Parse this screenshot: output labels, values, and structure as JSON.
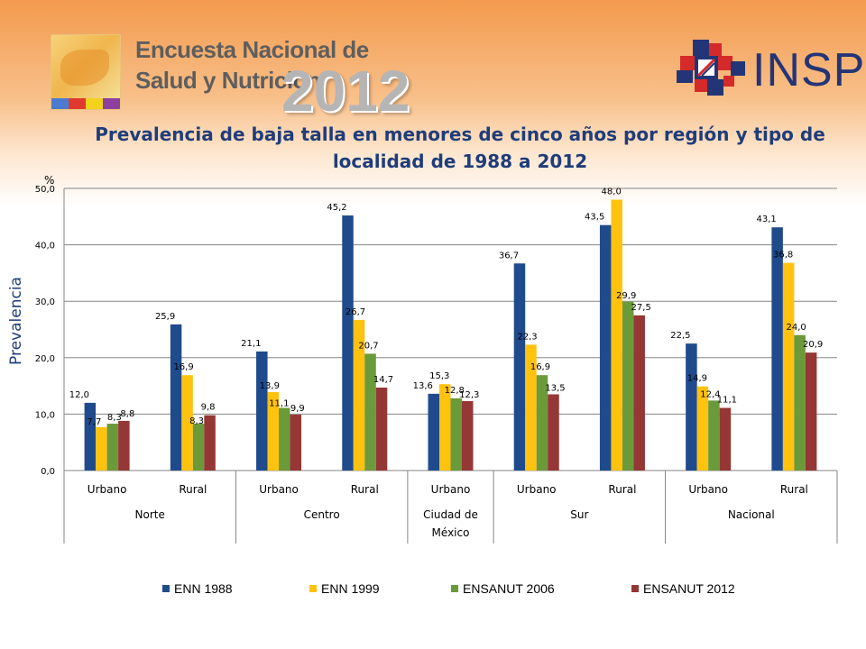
{
  "header": {
    "logo_line1": "Encuesta Nacional de",
    "logo_line2": "Salud y Nutrición",
    "logo_year": "2012",
    "institution": "INSP"
  },
  "colors": {
    "ENN 1988": "#1f4b8c",
    "ENN 1999": "#ffc20e",
    "ENSANUT 2006": "#6b9a3a",
    "ENSANUT 2012": "#953735",
    "title": "#1f3d7a"
  },
  "chart_data": {
    "type": "bar",
    "title": "Prevalencia de baja talla en menores de cinco años por región y tipo de localidad de 1988 a 2012",
    "title_line1": "Prevalencia de baja talla en menores de cinco años por región y tipo de",
    "title_line2": "localidad  de 1988 a 2012",
    "ylabel": "Prevalencia",
    "yunit": "%",
    "ylim": [
      0,
      50
    ],
    "yticks": [
      "0,0",
      "10,0",
      "20,0",
      "30,0",
      "40,0",
      "50,0"
    ],
    "grid": true,
    "legend_position": "bottom",
    "groups": [
      {
        "label": "Norte",
        "categories": [
          "Urbano",
          "Rural"
        ]
      },
      {
        "label": "Centro",
        "categories": [
          "Urbano",
          "Rural"
        ]
      },
      {
        "label": "Ciudad de México",
        "label_lines": [
          "Ciudad de",
          "México"
        ],
        "categories": [
          "Urbano"
        ]
      },
      {
        "label": "Sur",
        "categories": [
          "Urbano",
          "Rural"
        ]
      },
      {
        "label": "Nacional",
        "categories": [
          "Urbano",
          "Rural"
        ]
      }
    ],
    "categories": [
      "Urbano",
      "Rural",
      "Urbano",
      "Rural",
      "Urbano",
      "Urbano",
      "Rural",
      "Urbano",
      "Rural"
    ],
    "series": [
      {
        "name": "ENN 1988",
        "values": [
          12.0,
          25.9,
          21.1,
          45.2,
          13.6,
          36.7,
          43.5,
          22.5,
          43.1
        ],
        "labels": [
          "12,0",
          "25,9",
          "21,1",
          "45,2",
          "13,6",
          "36,7",
          "43,5",
          "22,5",
          "43,1"
        ]
      },
      {
        "name": "ENN 1999",
        "values": [
          7.7,
          16.9,
          13.9,
          26.7,
          15.3,
          22.3,
          48.0,
          14.9,
          36.8
        ],
        "labels": [
          "7,7",
          "16,9",
          "13,9",
          "26,7",
          "15,3",
          "22,3",
          "48,0",
          "14,9",
          "36,8"
        ]
      },
      {
        "name": "ENSANUT 2006",
        "values": [
          8.3,
          8.3,
          11.1,
          20.7,
          12.8,
          16.9,
          29.9,
          12.4,
          24.0
        ],
        "labels": [
          "8,3",
          "8,3",
          "11,1",
          "20,7",
          "12,8",
          "16,9",
          "29,9",
          "12,4",
          "24,0"
        ]
      },
      {
        "name": "ENSANUT 2012",
        "values": [
          8.8,
          9.8,
          9.9,
          14.7,
          12.3,
          13.5,
          27.5,
          11.1,
          20.9
        ],
        "labels": [
          "8,8",
          "9,8",
          "9,9",
          "14,7",
          "12,3",
          "13,5",
          "27,5",
          "11,1",
          "20,9"
        ]
      }
    ]
  }
}
